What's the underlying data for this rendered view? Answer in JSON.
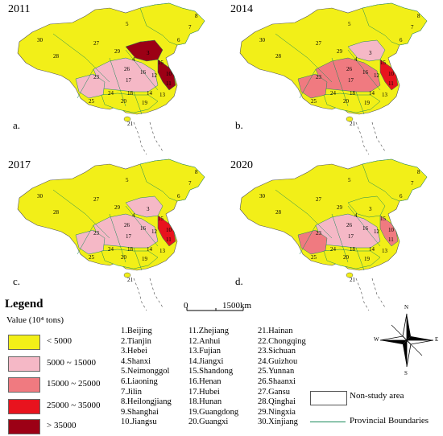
{
  "panels": [
    {
      "year": "2011",
      "label": "a."
    },
    {
      "year": "2014",
      "label": "b."
    },
    {
      "year": "2017",
      "label": "c."
    },
    {
      "year": "2020",
      "label": "d."
    }
  ],
  "legend": {
    "title": "Legend",
    "subtitle": "Value (10⁴ tons)",
    "classes": [
      {
        "label": "< 5000",
        "color": "#f2ef18"
      },
      {
        "label": "5000 ~ 15000",
        "color": "#f5b8c6"
      },
      {
        "label": "15000 ~ 25000",
        "color": "#f07a80"
      },
      {
        "label": "25000 ~ 35000",
        "color": "#e8131e"
      },
      {
        "label": "> 35000",
        "color": "#9c0015"
      }
    ],
    "non_study": "Non-study area",
    "boundaries": "Provincial Boundaries"
  },
  "scale": {
    "zero": "0",
    "distance": "1500km"
  },
  "compass": {
    "n": "N",
    "s": "S",
    "e": "E",
    "w": "W"
  },
  "provinces": [
    "1.Beijing",
    "2.Tianjin",
    "3.Hebei",
    "4.Shanxi",
    "5.Neimonggol",
    "6.Liaoning",
    "7.Jilin",
    "8.Heilongjiang",
    "9.Shanghai",
    "10.Jiangsu",
    "11.Zhejiang",
    "12.Anhui",
    "13.Fujian",
    "14.Jiangxi",
    "15.Shandong",
    "16.Henan",
    "17.Hubei",
    "18.Hunan",
    "19.Guangdong",
    "20.Guangxi",
    "21.Hainan",
    "22.Chongqing",
    "23.Sichuan",
    "24.Guizhou",
    "25.Yunnan",
    "26.Shaanxi",
    "27.Gansu",
    "28.Qinghai",
    "29.Ningxia",
    "30.Xinjiang"
  ],
  "map_numbers": [
    "30",
    "5",
    "8",
    "7",
    "6",
    "28",
    "27",
    "4",
    "29",
    "26",
    "3",
    "15",
    "16",
    "23",
    "17",
    "12",
    "18",
    "14",
    "24",
    "20",
    "19",
    "25",
    "13",
    "11",
    "10",
    "21"
  ]
}
